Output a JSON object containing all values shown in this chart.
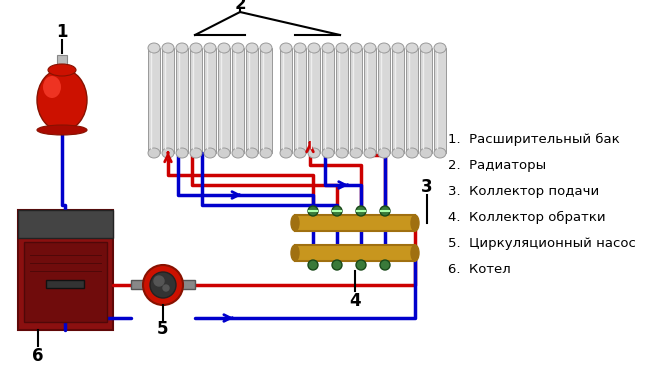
{
  "background_color": "#ffffff",
  "legend_items": [
    "1.  Расширительный бак",
    "2.  Радиаторы",
    "3.  Коллектор подачи",
    "4.  Коллектор обратки",
    "5.  Циркуляционный насос",
    "6.  Котел"
  ],
  "red": "#cc0000",
  "blue": "#0000cc",
  "black": "#000000",
  "rad_color": "#c0c0c0",
  "rad_edge": "#888888",
  "gold": "#c8961e",
  "gold_dark": "#a07010"
}
